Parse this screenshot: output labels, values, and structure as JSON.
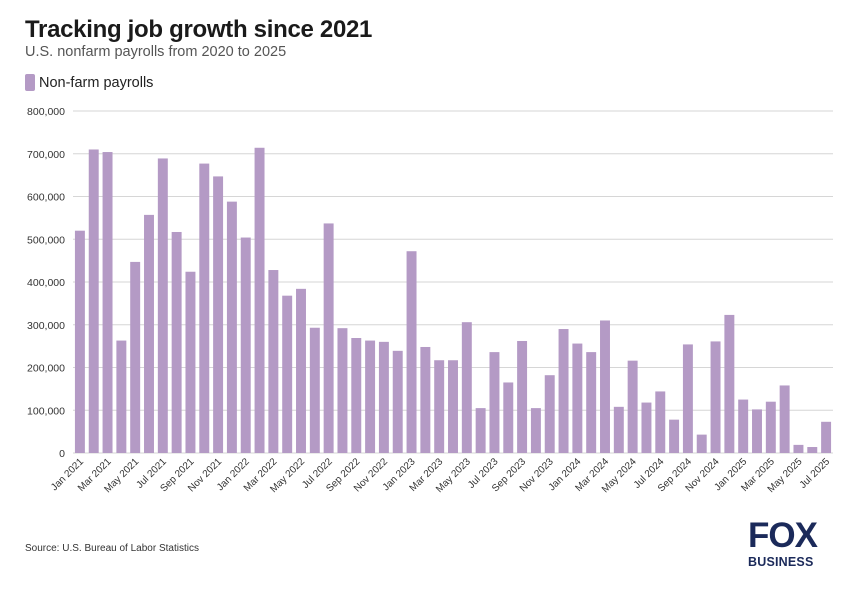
{
  "header": {
    "title": "Tracking job growth since 2021",
    "subtitle": "U.S. nonfarm payrolls from 2020 to 2025"
  },
  "legend": {
    "label": "Non-farm payrolls"
  },
  "footer": {
    "source": "Source: U.S. Bureau of Labor Statistics"
  },
  "logo": {
    "brand": "FOX",
    "sub": "BUSINESS"
  },
  "colors": {
    "bar": "#b49ac5",
    "grid": "#d6d6d6",
    "text": "#333333",
    "logo": "#1b2a5a"
  },
  "chart_data": {
    "type": "bar",
    "categories": [
      "Jan 2021",
      "Feb 2021",
      "Mar 2021",
      "Apr 2021",
      "May 2021",
      "Jun 2021",
      "Jul 2021",
      "Aug 2021",
      "Sep 2021",
      "Oct 2021",
      "Nov 2021",
      "Dec 2021",
      "Jan 2022",
      "Feb 2022",
      "Mar 2022",
      "Apr 2022",
      "May 2022",
      "Jun 2022",
      "Jul 2022",
      "Aug 2022",
      "Sep 2022",
      "Oct 2022",
      "Nov 2022",
      "Dec 2022",
      "Jan 2023",
      "Feb 2023",
      "Mar 2023",
      "Apr 2023",
      "May 2023",
      "Jun 2023",
      "Jul 2023",
      "Aug 2023",
      "Sep 2023",
      "Oct 2023",
      "Nov 2023",
      "Dec 2023",
      "Jan 2024",
      "Feb 2024",
      "Mar 2024",
      "Apr 2024",
      "May 2024",
      "Jun 2024",
      "Jul 2024",
      "Aug 2024",
      "Sep 2024",
      "Oct 2024",
      "Nov 2024",
      "Dec 2024",
      "Jan 2025",
      "Feb 2025",
      "Mar 2025",
      "Apr 2025",
      "May 2025",
      "Jun 2025",
      "Jul 2025"
    ],
    "tick_labels": [
      "Jan 2021",
      "Mar 2021",
      "May 2021",
      "Jul 2021",
      "Sep 2021",
      "Nov 2021",
      "Jan 2022",
      "Mar 2022",
      "May 2022",
      "Jul 2022",
      "Sep 2022",
      "Nov 2022",
      "Jan 2023",
      "Mar 2023",
      "May 2023",
      "Jul 2023",
      "Sep 2023",
      "Nov 2023",
      "Jan 2024",
      "Mar 2024",
      "May 2024",
      "Jul 2024",
      "Sep 2024",
      "Nov 2024",
      "Jan 2025",
      "Mar 2025",
      "May 2025",
      "Jul 2025"
    ],
    "series": [
      {
        "name": "Non-farm payrolls",
        "values": [
          520000,
          710000,
          704000,
          263000,
          447000,
          557000,
          689000,
          517000,
          424000,
          677000,
          647000,
          588000,
          504000,
          714000,
          428000,
          368000,
          384000,
          293000,
          537000,
          292000,
          269000,
          263000,
          260000,
          239000,
          472000,
          248000,
          217000,
          217000,
          306000,
          105000,
          236000,
          165000,
          262000,
          105000,
          182000,
          290000,
          256000,
          236000,
          310000,
          108000,
          216000,
          118000,
          144000,
          78000,
          254000,
          43000,
          261000,
          323000,
          125000,
          102000,
          120000,
          158000,
          19000,
          14000,
          73000
        ]
      }
    ],
    "ylim": [
      0,
      800000
    ],
    "yticks": [
      0,
      100000,
      200000,
      300000,
      400000,
      500000,
      600000,
      700000,
      800000
    ],
    "ytick_labels": [
      "0",
      "100,000",
      "200,000",
      "300,000",
      "400,000",
      "500,000",
      "600,000",
      "700,000",
      "800,000"
    ],
    "grid": true,
    "legend_position": "top-left"
  }
}
